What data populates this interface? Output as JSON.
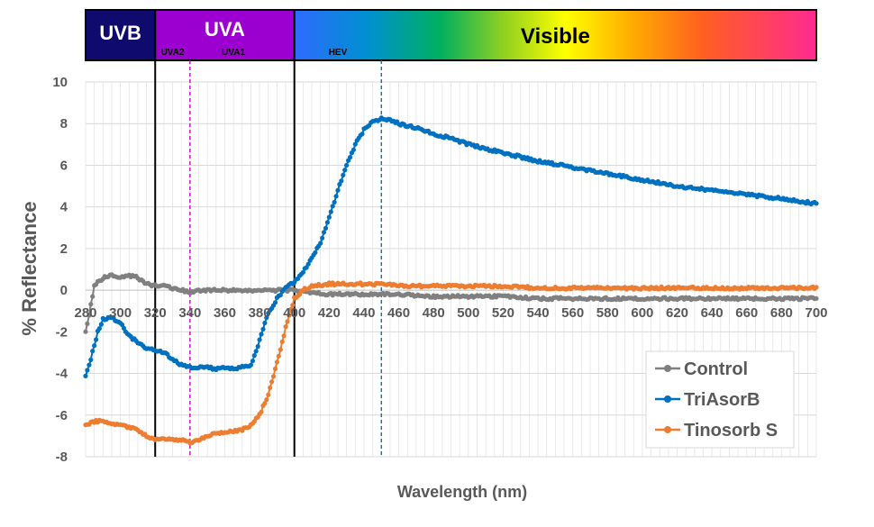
{
  "chart_data": {
    "type": "line",
    "title": "",
    "xlabel": "Wavelength (nm)",
    "ylabel": "% Reflectance",
    "xlim": [
      280,
      700
    ],
    "ylim": [
      -8,
      10
    ],
    "x_ticks": [
      280,
      300,
      320,
      340,
      360,
      380,
      400,
      420,
      440,
      460,
      480,
      500,
      520,
      540,
      560,
      580,
      600,
      620,
      640,
      660,
      680,
      700
    ],
    "y_ticks": [
      -8,
      -6,
      -4,
      -2,
      0,
      2,
      4,
      6,
      8,
      10
    ],
    "grid": true,
    "legend_position": "bottom-right",
    "series": [
      {
        "name": "Control",
        "color": "#808080",
        "x": [
          280,
          282,
          285,
          290,
          295,
          300,
          305,
          310,
          315,
          320,
          325,
          330,
          335,
          340,
          345,
          350,
          360,
          370,
          380,
          390,
          400,
          410,
          420,
          440,
          460,
          480,
          500,
          520,
          540,
          560,
          580,
          600,
          620,
          640,
          660,
          680,
          700
        ],
        "y": [
          -2.0,
          -1.2,
          0.2,
          0.6,
          0.7,
          0.6,
          0.7,
          0.6,
          0.3,
          0.2,
          0.2,
          0.1,
          0.0,
          -0.1,
          0.0,
          0.0,
          0.0,
          0.0,
          0.0,
          0.0,
          0.0,
          -0.1,
          -0.2,
          -0.2,
          -0.2,
          -0.3,
          -0.3,
          -0.3,
          -0.4,
          -0.4,
          -0.4,
          -0.4,
          -0.4,
          -0.4,
          -0.4,
          -0.4,
          -0.4
        ]
      },
      {
        "name": "TriAsorB",
        "color": "#0070C0",
        "x": [
          280,
          283,
          287,
          290,
          295,
          300,
          305,
          310,
          315,
          320,
          325,
          330,
          335,
          340,
          345,
          350,
          355,
          360,
          365,
          370,
          375,
          380,
          385,
          390,
          395,
          400,
          405,
          410,
          415,
          420,
          425,
          430,
          435,
          440,
          445,
          450,
          455,
          460,
          470,
          480,
          490,
          500,
          520,
          540,
          560,
          580,
          600,
          620,
          640,
          660,
          680,
          700
        ],
        "y": [
          -4.1,
          -3.3,
          -2.0,
          -1.4,
          -1.3,
          -1.6,
          -2.2,
          -2.5,
          -2.8,
          -2.9,
          -3.0,
          -3.3,
          -3.6,
          -3.7,
          -3.7,
          -3.7,
          -3.8,
          -3.7,
          -3.8,
          -3.7,
          -3.6,
          -2.4,
          -1.1,
          -0.4,
          0.1,
          0.4,
          0.9,
          1.5,
          2.3,
          3.5,
          4.8,
          6.0,
          7.0,
          7.7,
          8.1,
          8.25,
          8.2,
          8.0,
          7.8,
          7.5,
          7.3,
          7.0,
          6.6,
          6.2,
          5.9,
          5.6,
          5.3,
          5.0,
          4.8,
          4.6,
          4.4,
          4.15
        ]
      },
      {
        "name": "Tinosorb S",
        "color": "#ED7D31",
        "x": [
          280,
          285,
          290,
          295,
          300,
          305,
          310,
          315,
          320,
          325,
          330,
          335,
          340,
          345,
          350,
          355,
          360,
          365,
          370,
          375,
          380,
          385,
          390,
          395,
          400,
          405,
          410,
          420,
          430,
          440,
          450,
          460,
          480,
          500,
          520,
          540,
          560,
          580,
          600,
          620,
          640,
          660,
          680,
          700
        ],
        "y": [
          -6.5,
          -6.3,
          -6.3,
          -6.4,
          -6.5,
          -6.6,
          -6.7,
          -7.0,
          -7.2,
          -7.1,
          -7.2,
          -7.2,
          -7.3,
          -7.2,
          -7.0,
          -6.9,
          -6.8,
          -6.8,
          -6.7,
          -6.5,
          -6.0,
          -5.0,
          -3.5,
          -1.8,
          -0.4,
          0.0,
          0.2,
          0.3,
          0.3,
          0.3,
          0.3,
          0.2,
          0.2,
          0.2,
          0.2,
          0.1,
          0.1,
          0.1,
          0.1,
          0.1,
          0.1,
          0.1,
          0.1,
          0.1
        ]
      }
    ],
    "reference_lines": [
      {
        "x": 320,
        "color": "#000000",
        "style": "solid"
      },
      {
        "x": 400,
        "color": "#000000",
        "style": "solid"
      },
      {
        "x": 340,
        "color": "#CC00CC",
        "style": "dashed"
      },
      {
        "x": 450,
        "color": "#0070C0",
        "style": "dashed"
      }
    ],
    "bands": [
      {
        "label": "UVB",
        "from": 280,
        "to": 320,
        "fill": "#0E0A6E",
        "text_color": "#ffffff"
      },
      {
        "label": "UVA",
        "from": 320,
        "to": 400,
        "fill": "#9B00D0",
        "text_color": "#ffffff"
      },
      {
        "label": "Visible",
        "from": 400,
        "to": 700,
        "fill": "spectrum",
        "text_color": "#000000"
      }
    ],
    "sub_band_labels": [
      {
        "label": "UVA2",
        "x": 330
      },
      {
        "label": "UVA1",
        "x": 365
      },
      {
        "label": "HEV",
        "x": 425
      }
    ]
  }
}
